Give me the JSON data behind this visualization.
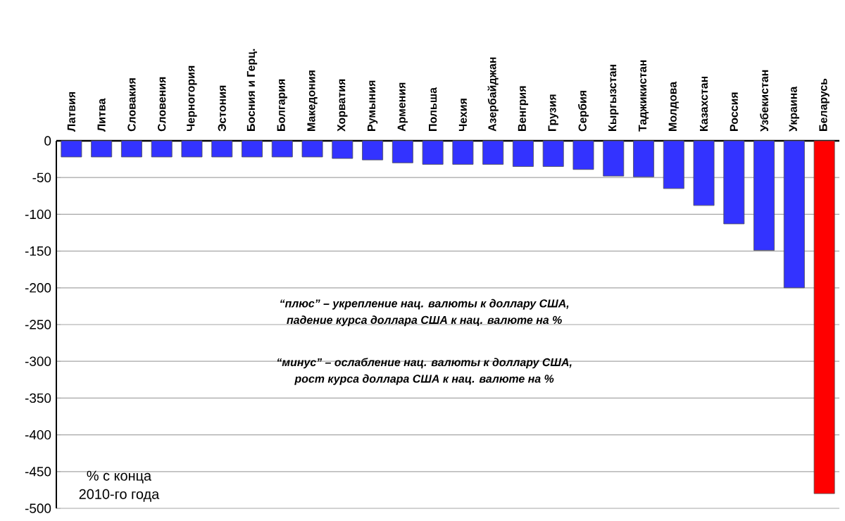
{
  "chart_data": {
    "type": "bar",
    "categories": [
      "Латвия",
      "Литва",
      "Словакия",
      "Словения",
      "Черногория",
      "Эстония",
      "Босния  и Герц.",
      "Болгария",
      "Македония",
      "Хорватия",
      "Румыния",
      "Армения",
      "Польша",
      "Чехия",
      "Азербайджан",
      "Венгрия",
      "Грузия",
      "Сербия",
      "Кыргызстан",
      "Таджикистан",
      "Молдова",
      "Казахстан",
      "Россия",
      "Узбекистан",
      "Украина",
      "Беларусь"
    ],
    "values": [
      -22,
      -22,
      -22,
      -22,
      -22,
      -22,
      -22,
      -22,
      -22,
      -24,
      -26,
      -30,
      -32,
      -32,
      -32,
      -35,
      -35,
      -39,
      -48,
      -49,
      -65,
      -88,
      -113,
      -149,
      -200,
      -480
    ],
    "colors": [
      "#3333ff",
      "#3333ff",
      "#3333ff",
      "#3333ff",
      "#3333ff",
      "#3333ff",
      "#3333ff",
      "#3333ff",
      "#3333ff",
      "#3333ff",
      "#3333ff",
      "#3333ff",
      "#3333ff",
      "#3333ff",
      "#3333ff",
      "#3333ff",
      "#3333ff",
      "#3333ff",
      "#3333ff",
      "#3333ff",
      "#3333ff",
      "#3333ff",
      "#3333ff",
      "#3333ff",
      "#3333ff",
      "#ff0000"
    ],
    "ylim": [
      -500,
      0
    ],
    "yticks": [
      -500,
      -450,
      -400,
      -350,
      -300,
      -250,
      -200,
      -150,
      -100,
      -50,
      0
    ],
    "grid": "y",
    "annotations": [
      "“плюс” – укрепление нац. валюты к доллару США,",
      "падение курса доллара США к нац. валюте на %",
      "“минус” – ослабление нац. валюты к доллару США,",
      "рост курса доллара США к нац. валюте на %",
      "% с конца",
      "2010-го года"
    ]
  }
}
